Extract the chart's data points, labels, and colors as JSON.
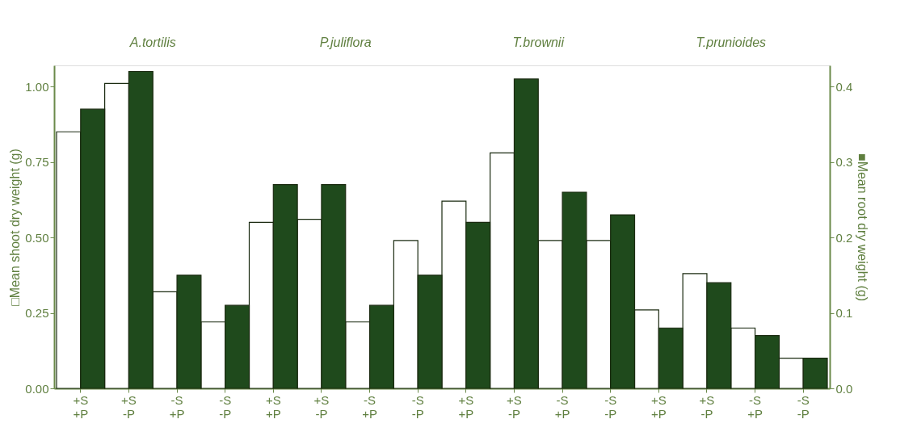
{
  "chart_data": {
    "type": "bar",
    "categories": [
      "+S\n+P",
      "+S\n-P",
      "-S\n+P",
      "-S\n-P",
      "+S\n+P",
      "+S\n-P",
      "-S\n+P",
      "-S\n-P",
      "+S\n+P",
      "+S\n-P",
      "-S\n+P",
      "-S\n-P",
      "+S\n+P",
      "+S\n-P",
      "-S\n+P",
      "-S\n-P"
    ],
    "series": [
      {
        "color": "#ffffff",
        "values": [
          0.85,
          1.01,
          0.32,
          0.22,
          0.55,
          0.56,
          0.22,
          0.49,
          0.62,
          0.78,
          0.49,
          0.49,
          0.26,
          0.38,
          0.2,
          0.1
        ]
      },
      {
        "color": "#1f4a1c",
        "axis": "y2",
        "values": [
          0.37,
          0.42,
          0.15,
          0.11,
          0.27,
          0.27,
          0.11,
          0.15,
          0.22,
          0.41,
          0.26,
          0.23,
          0.08,
          0.14,
          0.07,
          0.04
        ]
      }
    ],
    "ylabel": "□Mean shoot dry weight (g)",
    "y2label": "■Mean root dry weight (g)",
    "ylim": [
      0,
      1.07
    ],
    "yticks": [
      {
        "value": 0,
        "label": "0.00"
      },
      0.25,
      {
        "value": 0.5,
        "label": "0.50"
      },
      0.75,
      {
        "value": 1,
        "label": "1.00"
      }
    ],
    "y2lim": [
      0,
      0.428
    ],
    "y2ticks": [
      {
        "value": 0,
        "label": "0.0"
      },
      0.1,
      0.2,
      0.3,
      0.4
    ],
    "annotations": [
      "A.tortilis",
      "P.juliflora",
      "T.brownii",
      "T.prunioides"
    ],
    "grid": false
  }
}
